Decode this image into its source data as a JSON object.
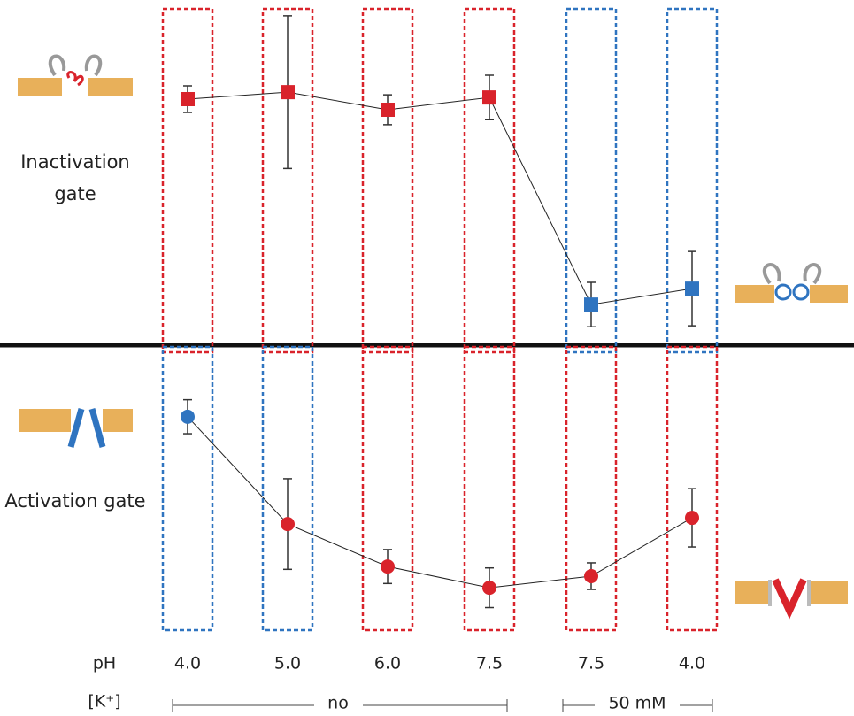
{
  "chart_data": [
    {
      "type": "line",
      "label": "Inactivation gate",
      "marker": "square",
      "ylim": [
        0,
        1
      ],
      "series": [
        {
          "values": [
            0.728,
            0.749,
            0.696,
            0.733,
            0.109,
            0.157
          ],
          "errors": [
            0.04,
            0.23,
            0.045,
            0.067,
            0.067,
            0.112
          ],
          "colors": [
            "#d9232b",
            "#d9232b",
            "#d9232b",
            "#d9232b",
            "#2f74c0",
            "#2f74c0"
          ]
        }
      ],
      "box_colors": [
        "#d9232b",
        "#d9232b",
        "#d9232b",
        "#d9232b",
        "#2f74c0",
        "#2f74c0"
      ]
    },
    {
      "type": "line",
      "label": "Activation gate",
      "marker": "circle",
      "ylim": [
        0,
        1
      ],
      "series": [
        {
          "values": [
            0.763,
            0.384,
            0.234,
            0.159,
            0.2,
            0.406
          ],
          "errors": [
            0.06,
            0.16,
            0.06,
            0.07,
            0.047,
            0.103
          ],
          "colors": [
            "#2f74c0",
            "#d9232b",
            "#d9232b",
            "#d9232b",
            "#d9232b",
            "#d9232b"
          ]
        }
      ],
      "box_colors": [
        "#2f74c0",
        "#2f74c0",
        "#d9232b",
        "#d9232b",
        "#d9232b",
        "#d9232b"
      ]
    }
  ],
  "x_axis": {
    "label": "pH",
    "categories": [
      "4.0",
      "5.0",
      "6.0",
      "7.5",
      "7.5",
      "4.0"
    ]
  },
  "k_row": {
    "label": "[K⁺]",
    "groups": [
      "no",
      "50 mM"
    ]
  }
}
